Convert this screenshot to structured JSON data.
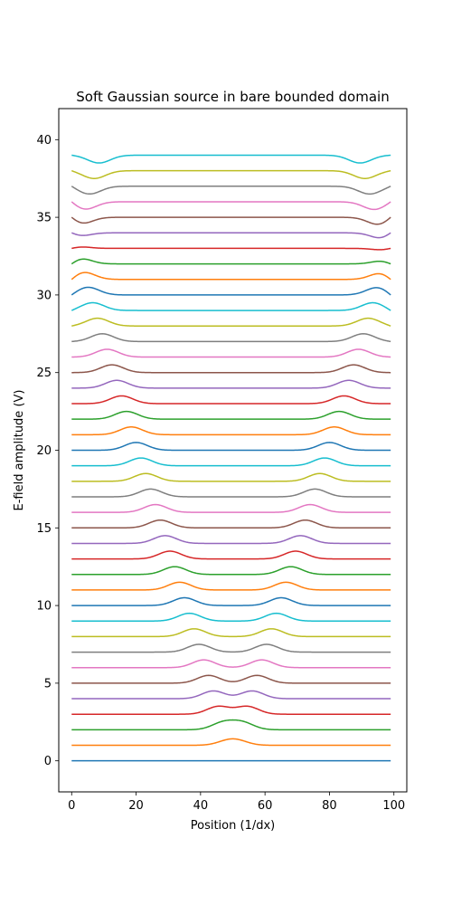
{
  "chart_data": {
    "type": "line",
    "title": "Soft Gaussian source in bare bounded domain",
    "xlabel": "Position (1/dx)",
    "ylabel": "E-field amplitude (V)",
    "xlim": [
      -4,
      104
    ],
    "ylim": [
      -2,
      42
    ],
    "xticks": [
      0,
      20,
      40,
      60,
      80,
      100
    ],
    "yticks": [
      0,
      5,
      10,
      15,
      20,
      25,
      30,
      35,
      40
    ],
    "grid": false,
    "legend": "none",
    "x_range": [
      0,
      99
    ],
    "series_count": 40,
    "series_offset_step": 1,
    "source_position": 50,
    "pulse_width": 3.5,
    "wave_speed": 1.5,
    "reflection": "sign-inverting at both walls",
    "colors": [
      "#1f77b4",
      "#ff7f0e",
      "#2ca02c",
      "#d62728",
      "#9467bd",
      "#8c564b",
      "#e377c2",
      "#7f7f7f",
      "#bcbd22",
      "#17becf"
    ]
  }
}
